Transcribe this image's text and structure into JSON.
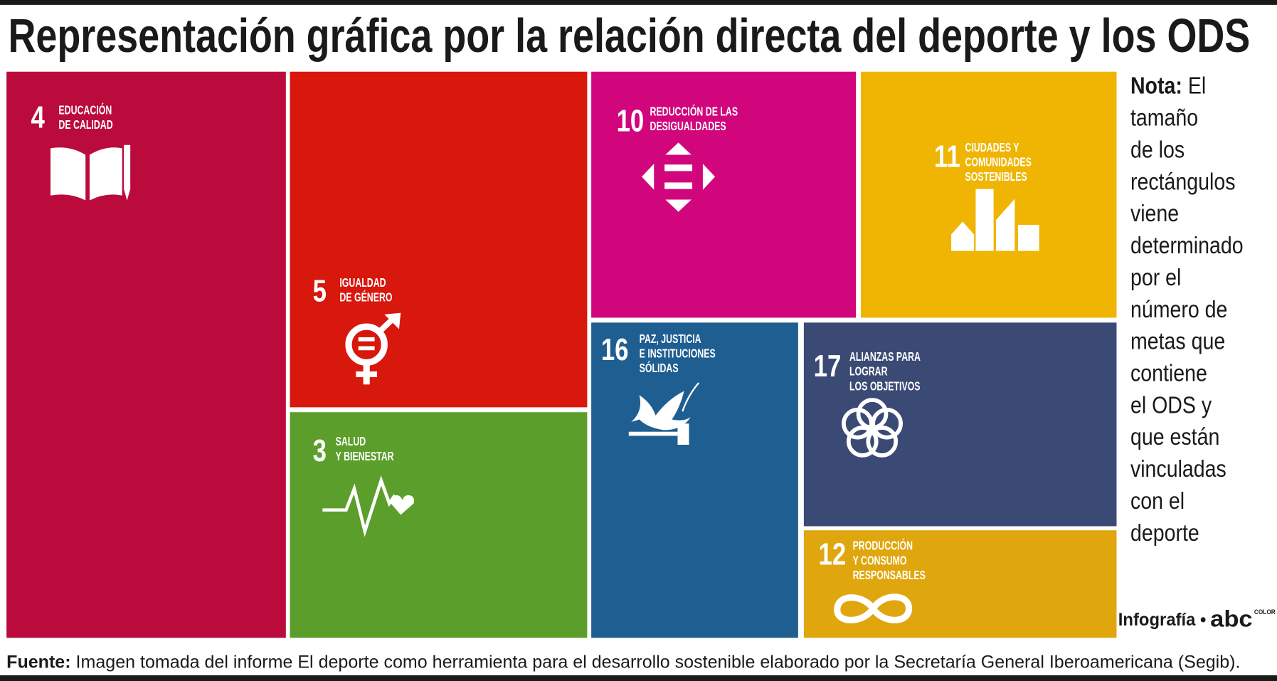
{
  "title": "Representación gráfica por la relación directa del deporte y los ODS",
  "tiles": [
    {
      "number": "4",
      "label": [
        "EDUCACIÓN",
        "DE CALIDAD"
      ]
    },
    {
      "number": "5",
      "label": [
        "IGUALDAD",
        "DE GÉNERO"
      ]
    },
    {
      "number": "3",
      "label": [
        "SALUD",
        "Y BIENESTAR"
      ]
    },
    {
      "number": "10",
      "label": [
        "REDUCCIÓN DE LAS",
        "DESIGUALDADES"
      ]
    },
    {
      "number": "11",
      "label": [
        "CIUDADES Y",
        "COMUNIDADES",
        "SOSTENIBLES"
      ]
    },
    {
      "number": "16",
      "label": [
        "PAZ, JUSTICIA",
        "E INSTITUCIONES",
        "SÓLIDAS"
      ]
    },
    {
      "number": "17",
      "label": [
        "ALIANZAS PARA",
        "LOGRAR",
        "LOS OBJETIVOS"
      ]
    },
    {
      "number": "12",
      "label": [
        "PRODUCCIÓN",
        "Y CONSUMO",
        "RESPONSABLES"
      ]
    }
  ],
  "note": {
    "label": "Nota:",
    "lines": [
      "El",
      "tamaño",
      "de los",
      "rectángulos",
      "viene",
      "determinado",
      "por el",
      "número de",
      "metas que",
      "contiene",
      "el ODS y",
      "que están",
      "vinculadas",
      "con el",
      "deporte"
    ]
  },
  "source": {
    "label": "Fuente:",
    "text": "Imagen tomada del informe El deporte como herramienta para el desarrollo sostenible elaborado por la Secretaría General Iberoamericana (Segib)."
  },
  "credit": {
    "text": "Infografía •",
    "logo": "abc",
    "logo_sub": "COLOR"
  }
}
